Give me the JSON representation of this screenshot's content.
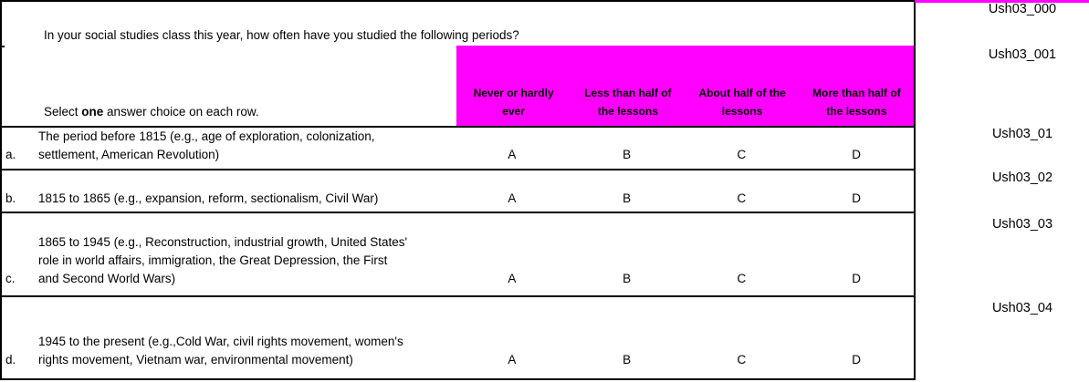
{
  "colors": {
    "header_bg": "#FF00FF",
    "border": "#000000",
    "text": "#000000",
    "background": "#FFFFFF"
  },
  "header": {
    "question": "In your social studies class this year, how often have you studied the following periods?",
    "instruction_prefix": "Select ",
    "instruction_bold": "one",
    "instruction_suffix": " answer choice on each row."
  },
  "table": {
    "column_headers": [
      {
        "line1": "Never or hardly",
        "line2": "ever"
      },
      {
        "line1": "Less than half of",
        "line2": "the lessons"
      },
      {
        "line1": "About half of the",
        "line2": "lessons"
      },
      {
        "line1": "More than half of",
        "line2": "the lessons"
      }
    ],
    "rows": [
      {
        "letter": "a.",
        "text": "The period before 1815 (e.g., age of exploration, colonization,\nsettlement, American Revolution)",
        "options": [
          "A",
          "B",
          "C",
          "D"
        ]
      },
      {
        "letter": "b.",
        "text": "1815 to 1865 (e.g., expansion, reform, sectionalism, Civil War)",
        "options": [
          "A",
          "B",
          "C",
          "D"
        ]
      },
      {
        "letter": "c.",
        "text": "1865 to 1945 (e.g., Reconstruction, industrial growth, United States'\nrole in world affairs, immigration, the Great Depression, the First\nand Second World Wars)",
        "options": [
          "A",
          "B",
          "C",
          "D"
        ]
      },
      {
        "letter": "d.",
        "text": "1945 to the present (e.g.,Cold War, civil rights movement, women's\nrights movement, Vietnam war, environmental movement)",
        "options": [
          "A",
          "B",
          "C",
          "D"
        ]
      }
    ]
  },
  "codes": [
    "Ush03_000",
    "Ush03_001",
    "Ush03_01",
    "Ush03_02",
    "Ush03_03",
    "Ush03_04"
  ]
}
